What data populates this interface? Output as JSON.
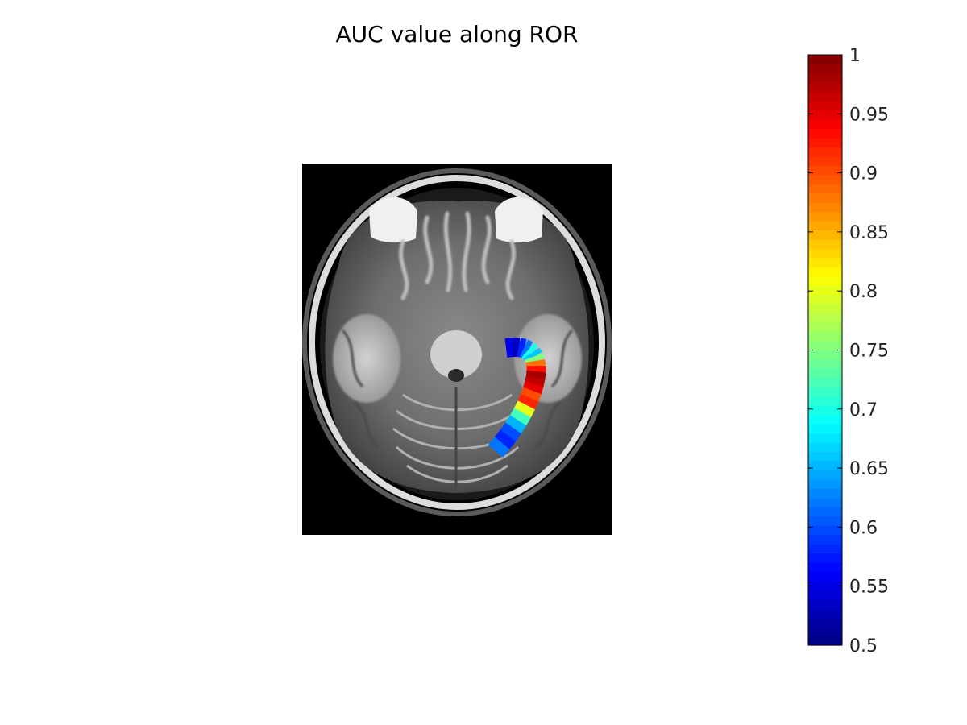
{
  "chart_data": {
    "type": "heatmap",
    "title": "AUC value along ROR",
    "xlabel": "",
    "ylabel": "",
    "grid": false,
    "image": "brain-mri-axial-slice",
    "colormap": "jet",
    "colorbar": {
      "position": "right",
      "range": [
        0.5,
        1
      ],
      "tick_values": [
        0.5,
        0.55,
        0.6,
        0.65,
        0.7,
        0.75,
        0.8,
        0.85,
        0.9,
        0.95,
        1
      ],
      "tick_labels": [
        "0.5",
        "0.55",
        "0.6",
        "0.65",
        "0.7",
        "0.75",
        "0.8",
        "0.85",
        "0.9",
        "0.95",
        "1"
      ]
    },
    "tract_auc_profile": [
      0.55,
      0.53,
      0.58,
      0.62,
      0.7,
      0.66,
      0.75,
      0.88,
      0.93,
      0.98,
      0.97,
      0.95,
      0.9,
      0.92,
      0.8,
      0.72,
      0.65,
      0.6,
      0.58,
      0.62
    ]
  },
  "colors": {
    "background": "#ffffff",
    "image_background": "#000000",
    "text": "#000000"
  }
}
